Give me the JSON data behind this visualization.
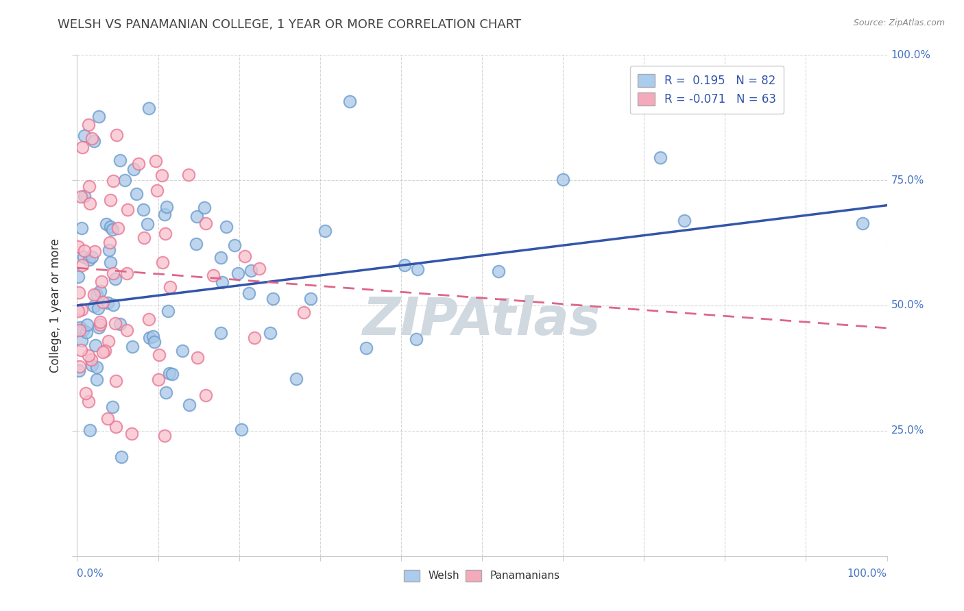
{
  "title": "WELSH VS PANAMANIAN COLLEGE, 1 YEAR OR MORE CORRELATION CHART",
  "source_text": "Source: ZipAtlas.com",
  "ylabel": "College, 1 year or more",
  "xlim": [
    0.0,
    1.0
  ],
  "ylim": [
    0.0,
    1.0
  ],
  "xticks": [
    0.0,
    0.1,
    0.2,
    0.3,
    0.4,
    0.5,
    0.6,
    0.7,
    0.8,
    0.9,
    1.0
  ],
  "yticks": [
    0.0,
    0.25,
    0.5,
    0.75,
    1.0
  ],
  "welsh_R": 0.195,
  "welsh_N": 82,
  "pana_R": -0.071,
  "pana_N": 63,
  "blue_marker_color": "#A8C8E8",
  "blue_marker_edge": "#6699CC",
  "pink_marker_color": "#F8C0CC",
  "pink_marker_edge": "#E87090",
  "blue_line_color": "#3355AA",
  "pink_line_color": "#DD6688",
  "background_color": "#FFFFFF",
  "grid_color": "#BBBBBB",
  "title_color": "#444444",
  "axis_label_color": "#4472C4",
  "watermark_color": "#D0D8E0",
  "legend_blue_fill": "#AACCEE",
  "legend_pink_fill": "#F4AABB"
}
